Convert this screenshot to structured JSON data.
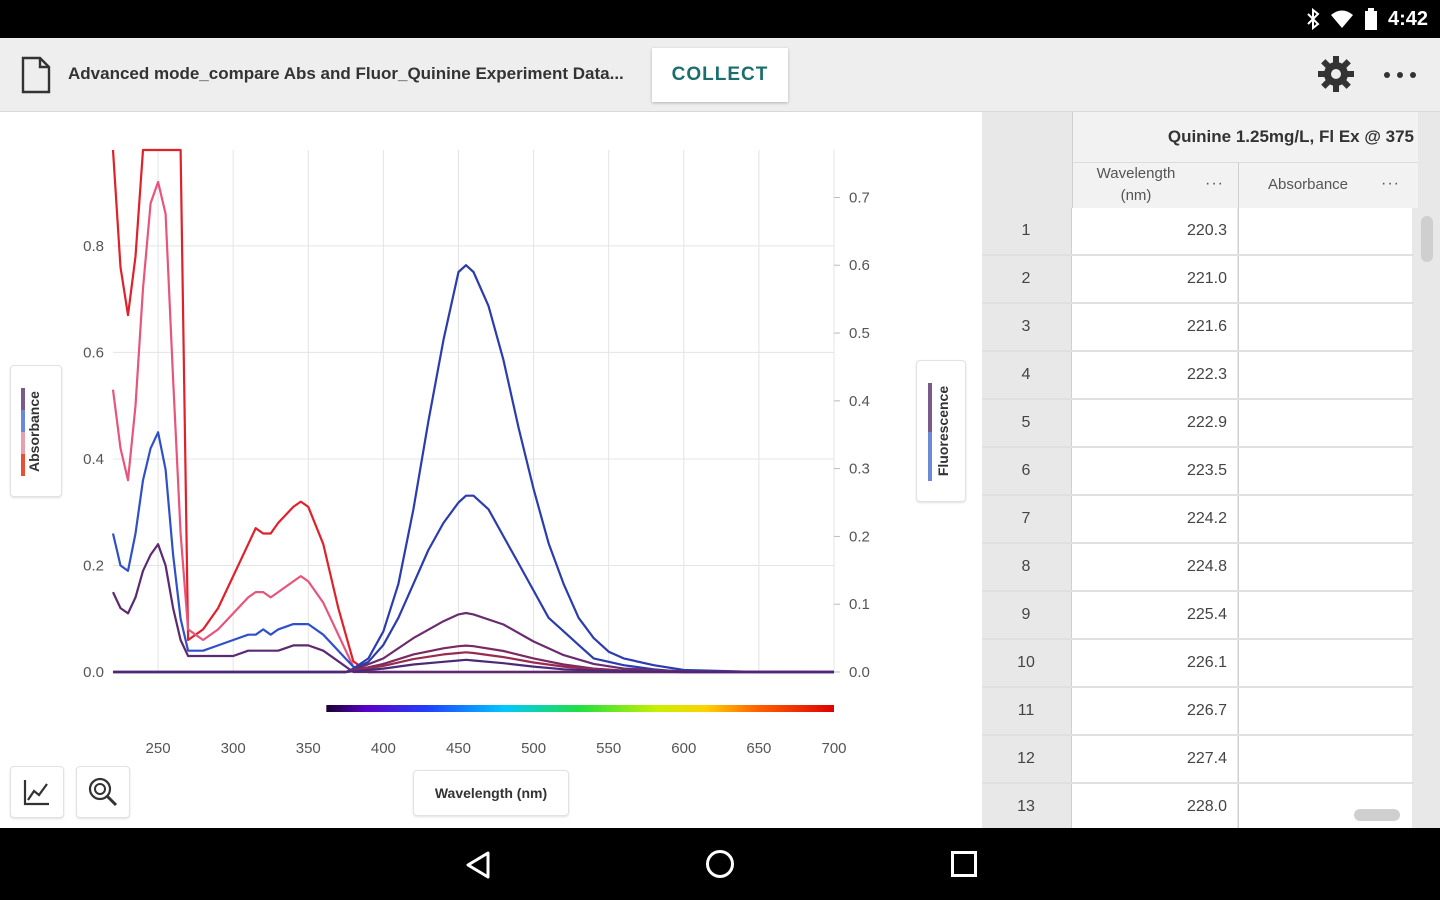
{
  "status_bar": {
    "time": "4:42",
    "icons": [
      "bluetooth-icon",
      "wifi-icon",
      "battery-icon"
    ]
  },
  "toolbar": {
    "file_title": "Advanced mode_compare Abs and Fluor_Quinine Experiment Data...",
    "collect_label": "COLLECT",
    "icons": [
      "document-icon",
      "gear-icon",
      "more-icon"
    ]
  },
  "graph": {
    "left_axis_label": "Absorbance",
    "right_axis_label": "Fluorescence",
    "x_axis_label": "Wavelength (nm)",
    "tool_icons": [
      "graph-options-icon",
      "zoom-icon"
    ]
  },
  "chart_data": {
    "type": "line",
    "xlabel": "Wavelength (nm)",
    "ylabel": "Absorbance",
    "y2label": "Fluorescence",
    "xlim": [
      220,
      700
    ],
    "ylim": [
      0,
      0.98
    ],
    "y2lim": [
      0,
      0.77
    ],
    "x_ticks": [
      250,
      300,
      350,
      400,
      450,
      500,
      550,
      600,
      650,
      700
    ],
    "y_ticks": [
      0.0,
      0.2,
      0.4,
      0.6,
      0.8
    ],
    "y2_ticks": [
      0.0,
      0.1,
      0.2,
      0.3,
      0.4,
      0.5,
      0.6,
      0.7
    ],
    "y_tick_labels": [
      "0.0",
      "0.2",
      "0.4",
      "0.6",
      "0.8"
    ],
    "y2_tick_labels": [
      "0.0",
      "0.1",
      "0.2",
      "0.3",
      "0.4",
      "0.5",
      "0.6",
      "0.7"
    ],
    "grid": true,
    "spectrum_bar_range": [
      380,
      700
    ],
    "series": [
      {
        "axis": "left",
        "color": "#e0202a",
        "x": [
          220,
          225,
          230,
          235,
          240,
          245,
          250,
          255,
          260,
          265,
          270,
          280,
          290,
          300,
          310,
          315,
          320,
          325,
          330,
          340,
          345,
          350,
          360,
          370,
          380,
          390,
          400,
          450,
          500,
          600,
          700
        ],
        "y": [
          0.99,
          0.76,
          0.67,
          0.78,
          0.99,
          0.99,
          0.99,
          0.99,
          0.99,
          0.99,
          0.06,
          0.08,
          0.12,
          0.18,
          0.24,
          0.27,
          0.26,
          0.26,
          0.28,
          0.31,
          0.32,
          0.31,
          0.24,
          0.12,
          0.02,
          0.0,
          0.0,
          0.0,
          0.0,
          0.0,
          0.0
        ]
      },
      {
        "axis": "left",
        "color": "#e8557a",
        "x": [
          220,
          225,
          230,
          235,
          240,
          245,
          250,
          255,
          260,
          265,
          270,
          280,
          290,
          300,
          310,
          315,
          320,
          325,
          330,
          340,
          345,
          350,
          360,
          370,
          380,
          390,
          400,
          450,
          500,
          600,
          700
        ],
        "y": [
          0.53,
          0.42,
          0.36,
          0.5,
          0.72,
          0.88,
          0.92,
          0.86,
          0.55,
          0.26,
          0.08,
          0.06,
          0.08,
          0.11,
          0.14,
          0.15,
          0.15,
          0.14,
          0.15,
          0.17,
          0.18,
          0.17,
          0.13,
          0.07,
          0.01,
          0.0,
          0.0,
          0.0,
          0.0,
          0.0,
          0.0
        ]
      },
      {
        "axis": "left",
        "color": "#3050c8",
        "x": [
          220,
          225,
          230,
          235,
          240,
          245,
          250,
          255,
          260,
          265,
          270,
          280,
          290,
          300,
          310,
          315,
          320,
          325,
          330,
          340,
          345,
          350,
          360,
          370,
          380,
          390,
          400,
          450,
          500,
          600,
          700
        ],
        "y": [
          0.26,
          0.2,
          0.19,
          0.26,
          0.36,
          0.42,
          0.45,
          0.38,
          0.22,
          0.1,
          0.04,
          0.04,
          0.05,
          0.06,
          0.07,
          0.07,
          0.08,
          0.07,
          0.08,
          0.09,
          0.09,
          0.09,
          0.07,
          0.04,
          0.01,
          0.0,
          0.0,
          0.0,
          0.0,
          0.0,
          0.0
        ]
      },
      {
        "axis": "left",
        "color": "#5b2a70",
        "x": [
          220,
          225,
          230,
          235,
          240,
          245,
          250,
          255,
          260,
          265,
          270,
          280,
          290,
          300,
          310,
          315,
          320,
          325,
          330,
          340,
          345,
          350,
          360,
          370,
          380,
          390,
          400,
          450,
          500,
          600,
          700
        ],
        "y": [
          0.15,
          0.12,
          0.11,
          0.14,
          0.19,
          0.22,
          0.24,
          0.2,
          0.12,
          0.06,
          0.03,
          0.03,
          0.03,
          0.03,
          0.04,
          0.04,
          0.04,
          0.04,
          0.04,
          0.05,
          0.05,
          0.05,
          0.04,
          0.02,
          0.0,
          0.0,
          0.0,
          0.0,
          0.0,
          0.0,
          0.0
        ]
      },
      {
        "axis": "right",
        "color": "#2a3cae",
        "x": [
          220,
          300,
          360,
          375,
          380,
          390,
          400,
          410,
          420,
          430,
          440,
          450,
          455,
          460,
          470,
          480,
          490,
          500,
          510,
          520,
          530,
          540,
          550,
          560,
          580,
          600,
          650,
          700
        ],
        "y": [
          0.0,
          0.0,
          0.0,
          0.0,
          0.005,
          0.02,
          0.06,
          0.13,
          0.24,
          0.37,
          0.49,
          0.59,
          0.6,
          0.59,
          0.54,
          0.46,
          0.36,
          0.27,
          0.19,
          0.13,
          0.08,
          0.05,
          0.03,
          0.02,
          0.01,
          0.003,
          0.0,
          0.0
        ]
      },
      {
        "axis": "right",
        "color": "#2a3cae",
        "x": [
          220,
          300,
          360,
          375,
          380,
          390,
          400,
          410,
          420,
          430,
          440,
          450,
          455,
          460,
          470,
          480,
          490,
          500,
          510,
          520,
          530,
          540,
          550,
          560,
          580,
          600,
          650,
          700
        ],
        "y": [
          0.0,
          0.0,
          0.0,
          0.0,
          0.004,
          0.015,
          0.04,
          0.08,
          0.13,
          0.18,
          0.22,
          0.25,
          0.26,
          0.26,
          0.24,
          0.2,
          0.16,
          0.12,
          0.08,
          0.06,
          0.04,
          0.02,
          0.015,
          0.01,
          0.004,
          0.0,
          0.0,
          0.0
        ]
      },
      {
        "axis": "right",
        "color": "#6a2c6e",
        "x": [
          220,
          300,
          360,
          375,
          380,
          400,
          420,
          440,
          450,
          455,
          460,
          480,
          500,
          520,
          540,
          560,
          600,
          700
        ],
        "y": [
          0.0,
          0.0,
          0.0,
          0.0,
          0.003,
          0.02,
          0.05,
          0.075,
          0.085,
          0.087,
          0.085,
          0.07,
          0.045,
          0.025,
          0.012,
          0.005,
          0.001,
          0.0
        ]
      },
      {
        "axis": "right",
        "color": "#7a2a60",
        "x": [
          220,
          300,
          360,
          375,
          380,
          400,
          420,
          440,
          450,
          455,
          460,
          480,
          500,
          520,
          540,
          560,
          600,
          700
        ],
        "y": [
          0.0,
          0.0,
          0.0,
          0.0,
          0.002,
          0.012,
          0.026,
          0.035,
          0.038,
          0.039,
          0.038,
          0.031,
          0.02,
          0.011,
          0.005,
          0.002,
          0.0,
          0.0
        ]
      },
      {
        "axis": "right",
        "color": "#9a2a50",
        "x": [
          220,
          300,
          360,
          375,
          380,
          400,
          420,
          440,
          450,
          455,
          460,
          480,
          500,
          520,
          540,
          560,
          600,
          700
        ],
        "y": [
          0.0,
          0.0,
          0.0,
          0.0,
          0.002,
          0.009,
          0.019,
          0.026,
          0.028,
          0.029,
          0.028,
          0.022,
          0.014,
          0.008,
          0.004,
          0.001,
          0.0,
          0.0
        ]
      },
      {
        "axis": "right",
        "color": "#4a2a78",
        "x": [
          220,
          300,
          360,
          375,
          380,
          400,
          420,
          440,
          450,
          455,
          460,
          480,
          500,
          520,
          540,
          560,
          600,
          700
        ],
        "y": [
          0.0,
          0.0,
          0.0,
          0.0,
          0.001,
          0.005,
          0.011,
          0.015,
          0.017,
          0.018,
          0.017,
          0.013,
          0.008,
          0.004,
          0.002,
          0.001,
          0.0,
          0.0
        ]
      }
    ]
  },
  "table": {
    "title": "Quinine 1.25mg/L, Fl Ex @ 375",
    "col1_line1": "Wavelength",
    "col1_line2": "(nm)",
    "col2": "Absorbance",
    "col_menu": "···",
    "rows": [
      {
        "n": "1",
        "wl": "220.3"
      },
      {
        "n": "2",
        "wl": "221.0"
      },
      {
        "n": "3",
        "wl": "221.6"
      },
      {
        "n": "4",
        "wl": "222.3"
      },
      {
        "n": "5",
        "wl": "222.9"
      },
      {
        "n": "6",
        "wl": "223.5"
      },
      {
        "n": "7",
        "wl": "224.2"
      },
      {
        "n": "8",
        "wl": "224.8"
      },
      {
        "n": "9",
        "wl": "225.4"
      },
      {
        "n": "10",
        "wl": "226.1"
      },
      {
        "n": "11",
        "wl": "226.7"
      },
      {
        "n": "12",
        "wl": "227.4"
      },
      {
        "n": "13",
        "wl": "228.0"
      }
    ]
  },
  "nav_bar": {
    "icons": [
      "back-icon",
      "home-icon",
      "recents-icon"
    ]
  }
}
